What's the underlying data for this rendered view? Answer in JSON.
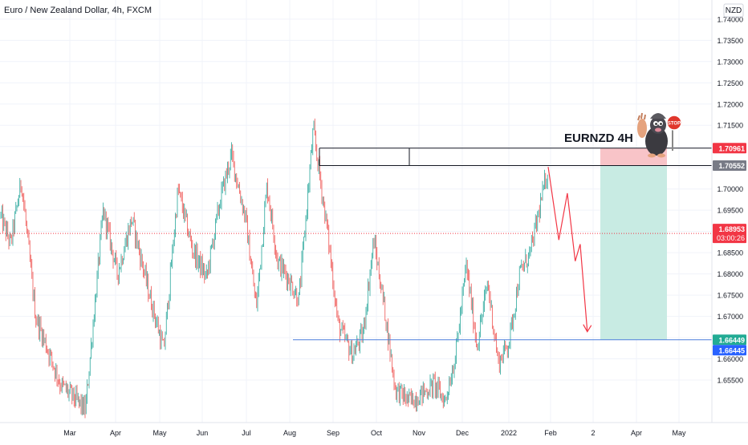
{
  "header": {
    "symbol_title": "Euro / New Zealand Dollar, 4h, FXCM",
    "currency_badge": "NZD"
  },
  "annotation": {
    "label": "EURNZD 4H",
    "mascot_icon": "mole-stop-sign-icon",
    "stop_sign_text": "STOP"
  },
  "chart_data": {
    "type": "candlestick",
    "symbol": "EURNZD",
    "timeframe": "4h",
    "source": "FXCM",
    "price_axis": {
      "range": [
        1.645,
        1.7445
      ],
      "ticks": [
        "1.74000",
        "1.73500",
        "1.73000",
        "1.72500",
        "1.72000",
        "1.71500",
        "1.71000",
        "1.70500",
        "1.70000",
        "1.69500",
        "1.69000",
        "1.68500",
        "1.68000",
        "1.67500",
        "1.67000",
        "1.66500",
        "1.66000",
        "1.65500"
      ]
    },
    "time_axis": {
      "ticks": [
        "Mar",
        "Apr",
        "May",
        "Jun",
        "Jul",
        "Aug",
        "Sep",
        "Oct",
        "Nov",
        "Dec",
        "2022",
        "Feb",
        "2",
        "Apr",
        "May"
      ]
    },
    "price_path": [
      {
        "t": 0.0,
        "p": 1.694
      },
      {
        "t": 0.015,
        "p": 1.687
      },
      {
        "t": 0.03,
        "p": 1.702
      },
      {
        "t": 0.05,
        "p": 1.67
      },
      {
        "t": 0.085,
        "p": 1.654
      },
      {
        "t": 0.12,
        "p": 1.648
      },
      {
        "t": 0.145,
        "p": 1.695
      },
      {
        "t": 0.165,
        "p": 1.68
      },
      {
        "t": 0.185,
        "p": 1.693
      },
      {
        "t": 0.21,
        "p": 1.675
      },
      {
        "t": 0.23,
        "p": 1.662
      },
      {
        "t": 0.25,
        "p": 1.7
      },
      {
        "t": 0.27,
        "p": 1.686
      },
      {
        "t": 0.29,
        "p": 1.679
      },
      {
        "t": 0.31,
        "p": 1.698
      },
      {
        "t": 0.325,
        "p": 1.708
      },
      {
        "t": 0.345,
        "p": 1.693
      },
      {
        "t": 0.36,
        "p": 1.672
      },
      {
        "t": 0.375,
        "p": 1.701
      },
      {
        "t": 0.39,
        "p": 1.683
      },
      {
        "t": 0.405,
        "p": 1.679
      },
      {
        "t": 0.42,
        "p": 1.674
      },
      {
        "t": 0.44,
        "p": 1.714
      },
      {
        "t": 0.46,
        "p": 1.69
      },
      {
        "t": 0.475,
        "p": 1.668
      },
      {
        "t": 0.495,
        "p": 1.661
      },
      {
        "t": 0.51,
        "p": 1.666
      },
      {
        "t": 0.525,
        "p": 1.688
      },
      {
        "t": 0.54,
        "p": 1.672
      },
      {
        "t": 0.555,
        "p": 1.653
      },
      {
        "t": 0.575,
        "p": 1.65
      },
      {
        "t": 0.595,
        "p": 1.652
      },
      {
        "t": 0.61,
        "p": 1.654
      },
      {
        "t": 0.625,
        "p": 1.65
      },
      {
        "t": 0.64,
        "p": 1.661
      },
      {
        "t": 0.655,
        "p": 1.682
      },
      {
        "t": 0.67,
        "p": 1.663
      },
      {
        "t": 0.685,
        "p": 1.678
      },
      {
        "t": 0.7,
        "p": 1.659
      },
      {
        "t": 0.715,
        "p": 1.664
      },
      {
        "t": 0.73,
        "p": 1.68
      },
      {
        "t": 0.745,
        "p": 1.685
      },
      {
        "t": 0.755,
        "p": 1.693
      },
      {
        "t": 0.77,
        "p": 1.705
      }
    ],
    "resistance_lines": [
      {
        "price": 1.70961,
        "label": "1.70961",
        "color": "#f23645"
      },
      {
        "price": 1.70552,
        "label": "1.70552",
        "color": "#787b86"
      }
    ],
    "support_line": {
      "price": 1.66449,
      "label": "1.66449",
      "color": "#4d7fdb"
    },
    "current_price": {
      "price": 1.68953,
      "label": "1.68953",
      "countdown": "03:00:26",
      "color": "#f23645"
    },
    "secondary_price_label": {
      "price": 1.66445,
      "label": "1.66445",
      "color": "#2962ff"
    },
    "short_position": {
      "entry": 1.70552,
      "stop": 1.70961,
      "target": 1.66449,
      "stop_zone_color": "#f8c4c8",
      "target_zone_color": "#c8ebe3"
    },
    "projection_path": [
      {
        "t": 0.77,
        "p": 1.7052
      },
      {
        "t": 0.785,
        "p": 1.688
      },
      {
        "t": 0.797,
        "p": 1.699
      },
      {
        "t": 0.808,
        "p": 1.683
      },
      {
        "t": 0.815,
        "p": 1.687
      },
      {
        "t": 0.825,
        "p": 1.6664
      }
    ],
    "projection_color": "#f23645",
    "legend": "none",
    "grid": true
  }
}
